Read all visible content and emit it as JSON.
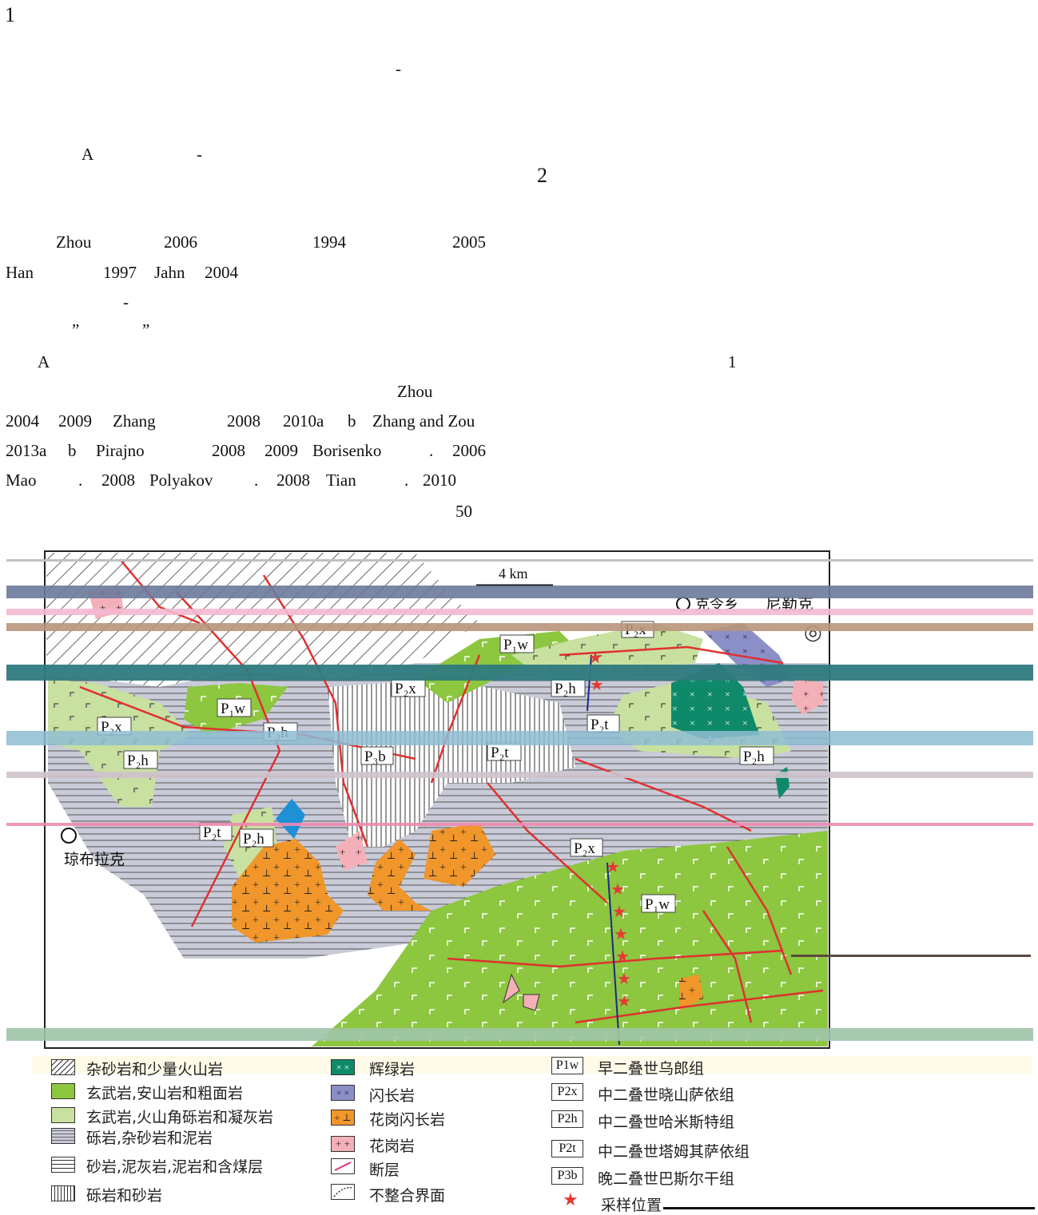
{
  "page": {
    "section_number": "1",
    "dash_1": "-",
    "para_A_label": "A",
    "para_A_dash": "-",
    "section_number_2": "2"
  },
  "text_lines": [
    [
      "Zhou",
      "2006",
      "1994",
      "2005"
    ],
    [
      "Han",
      "1997",
      "Jahn",
      "2004"
    ],
    [
      "-"
    ],
    [
      "”",
      "”"
    ],
    [
      "A",
      "1"
    ],
    [
      "Zhou"
    ],
    [
      "2004",
      "2009",
      "Zhang",
      "2008",
      "2010a",
      "b",
      "Zhang and Zou"
    ],
    [
      "2013a",
      "b",
      "Pirajno",
      "2008",
      "2009",
      "Borisenko",
      ".",
      "2006"
    ],
    [
      "Mao",
      ".",
      "2008",
      "Polyakov",
      ".",
      "2008",
      "Tian",
      ".",
      "2010"
    ],
    [
      "50"
    ]
  ],
  "map": {
    "scale_label": "4 km",
    "places": {
      "nilek": "尼勒克",
      "kexiang": "克令乡",
      "qiongbulake": "琼布拉克"
    },
    "unit_labels": [
      "P1w",
      "P2x",
      "P2h",
      "P2t",
      "P3b"
    ],
    "colors": {
      "basalt_dark": "#8dc63f",
      "basalt_light": "#c8e0a0",
      "gabbro": "#0e8a6a",
      "diorite": "#8a8fc8",
      "granodiorite": "#f0962a",
      "granite": "#f4b0b8",
      "fault": "#e03030",
      "sample": "#e53935",
      "sandstone": "#c8cad6"
    }
  },
  "legend": {
    "lithology": [
      {
        "icon": "hatch-icon",
        "label": "杂砂岩和少量火山岩"
      },
      {
        "icon": "basalt-dark-icon",
        "label": "玄武岩,安山岩和粗面岩"
      },
      {
        "icon": "basalt-light-icon",
        "label": "玄武岩,火山角砾岩和凝灰岩"
      },
      {
        "icon": "conglomerate-icon",
        "label": "砾岩,杂砂岩和泥岩"
      },
      {
        "icon": "coal-icon",
        "label": "砂岩,泥灰岩,泥岩和含煤层"
      },
      {
        "icon": "vertical-stripe-icon",
        "label": "砾岩和砂岩"
      }
    ],
    "intrusives": [
      {
        "icon": "gabbro-icon",
        "label": "辉绿岩"
      },
      {
        "icon": "diorite-icon",
        "label": "闪长岩"
      },
      {
        "icon": "granodiorite-icon",
        "label": "花岗闪长岩"
      },
      {
        "icon": "granite-icon",
        "label": "花岗岩"
      },
      {
        "icon": "fault-icon",
        "label": "断层"
      },
      {
        "icon": "unconformity-icon",
        "label": "不整合界面"
      }
    ],
    "formations": [
      {
        "code": "P1w",
        "label": "早二叠世乌郎组"
      },
      {
        "code": "P2x",
        "label": "中二叠世晓山萨依组"
      },
      {
        "code": "P2h",
        "label": "中二叠世哈米斯特组"
      },
      {
        "code": "P2t",
        "label": "中二叠世塔姆其萨依组"
      },
      {
        "code": "P3b",
        "label": "晚二叠世巴斯尔干组"
      }
    ],
    "sample_label": "采样位置"
  }
}
